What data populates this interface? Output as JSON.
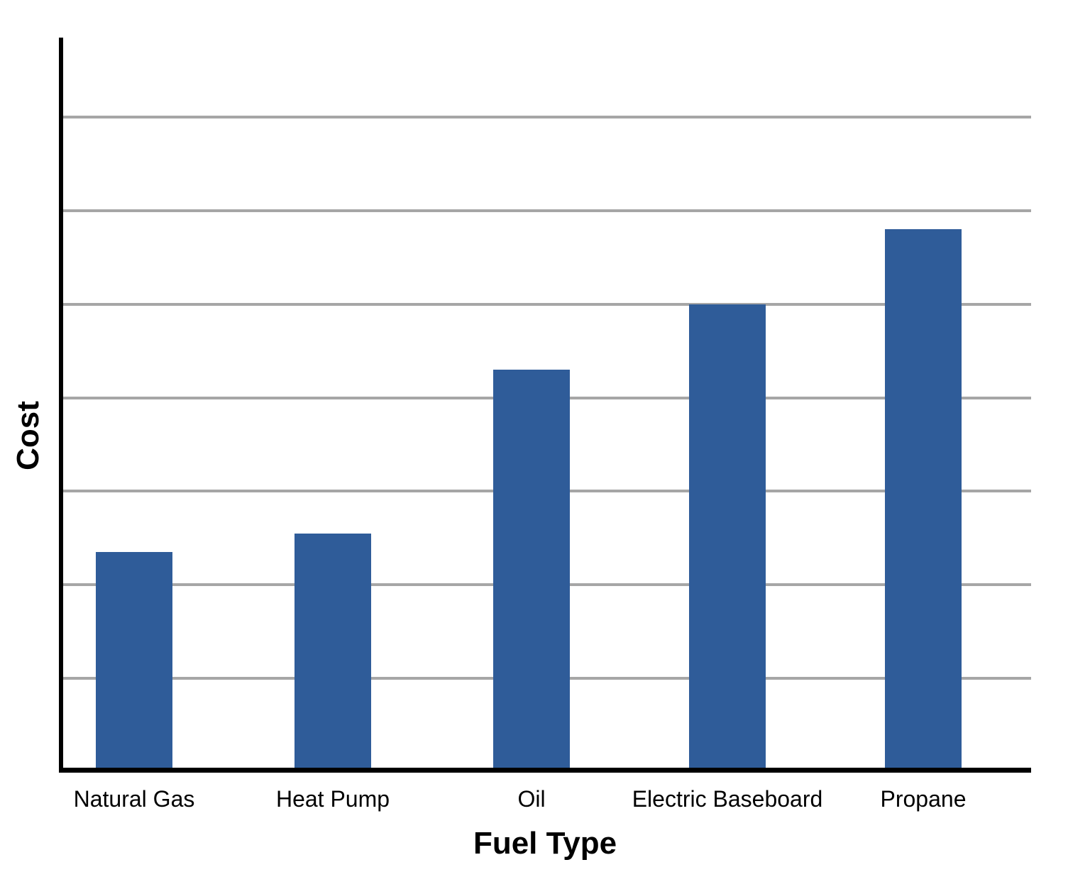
{
  "chart_data": {
    "type": "bar",
    "categories": [
      "Natural Gas",
      "Heat Pump",
      "Oil",
      "Electric Baseboard",
      "Propane"
    ],
    "values": [
      2.35,
      2.55,
      4.3,
      5.0,
      5.8
    ],
    "xlabel": "Fuel Type",
    "ylabel": "Cost",
    "ylim": [
      0,
      7.85
    ],
    "gridline_values": [
      1,
      2,
      3,
      4,
      5,
      6,
      7
    ],
    "y_tick_labels": [],
    "legend": "none",
    "grid": "horizontal",
    "colors": {
      "bar": "#2f5c99",
      "gridline": "#a6a6a6",
      "axis": "#000000",
      "background": "#ffffff",
      "text": "#000000"
    }
  }
}
